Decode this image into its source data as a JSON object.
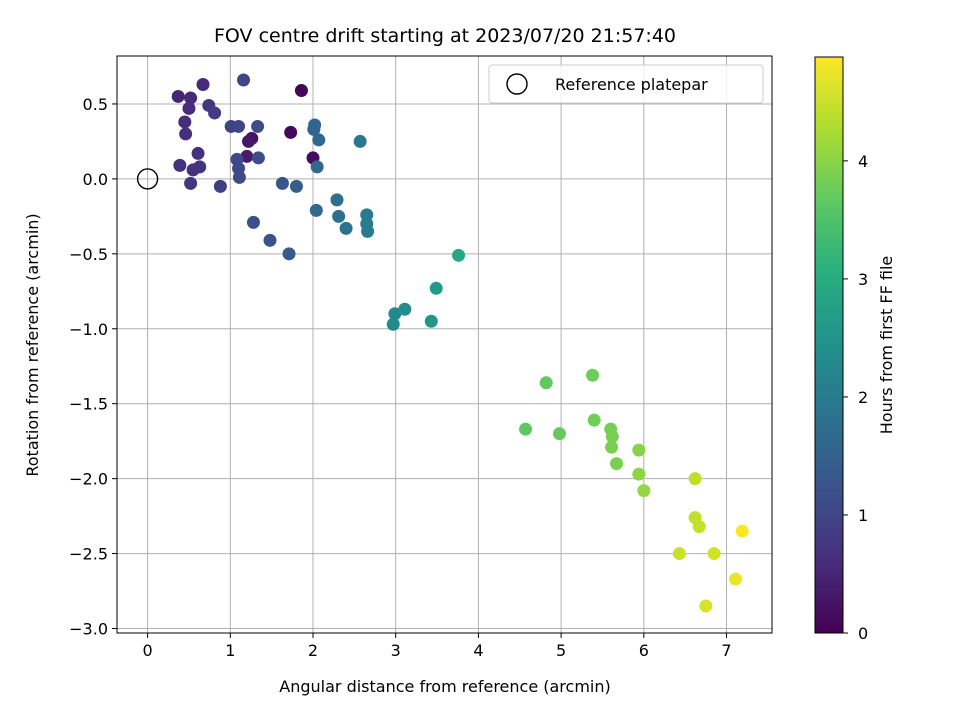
{
  "chart_data": {
    "type": "scatter",
    "title": "FOV centre drift starting at 2023/07/20 21:57:40",
    "xlabel": "Angular distance from reference (arcmin)",
    "ylabel": "Rotation from reference (arcmin)",
    "colorbar_label": "Hours from first FF file",
    "xlim": [
      -0.37,
      7.55
    ],
    "ylim": [
      -3.03,
      0.82
    ],
    "x_ticks": [
      0,
      1,
      2,
      3,
      4,
      5,
      6,
      7
    ],
    "y_ticks": [
      0.5,
      0.0,
      -0.5,
      -1.0,
      -1.5,
      -2.0,
      -2.5,
      -3.0
    ],
    "x_tick_labels": [
      "0",
      "1",
      "2",
      "3",
      "4",
      "5",
      "6",
      "7"
    ],
    "y_tick_labels": [
      "0.5",
      "0.0",
      "−0.5",
      "−1.0",
      "−1.5",
      "−2.0",
      "−2.5",
      "−3.0"
    ],
    "colorbar_range": [
      0,
      4.88
    ],
    "colorbar_ticks": [
      0,
      1,
      2,
      3,
      4
    ],
    "colorbar_tick_labels": [
      "0",
      "1",
      "2",
      "3",
      "4"
    ],
    "colormap": "viridis",
    "grid": true,
    "legend": {
      "position": "top-right",
      "entries": [
        "Reference platepar"
      ]
    },
    "reference_point": {
      "label": "Reference platepar",
      "x": 0.0,
      "y": 0.0
    },
    "points": [
      {
        "x": 1.86,
        "y": 0.59,
        "c": 0.05
      },
      {
        "x": 1.73,
        "y": 0.31,
        "c": 0.1
      },
      {
        "x": 2.0,
        "y": 0.14,
        "c": 0.15
      },
      {
        "x": 1.26,
        "y": 0.27,
        "c": 0.25
      },
      {
        "x": 1.22,
        "y": 0.25,
        "c": 0.3
      },
      {
        "x": 1.2,
        "y": 0.15,
        "c": 0.35
      },
      {
        "x": 0.37,
        "y": 0.55,
        "c": 0.5
      },
      {
        "x": 0.52,
        "y": 0.54,
        "c": 0.55
      },
      {
        "x": 0.67,
        "y": 0.63,
        "c": 0.58
      },
      {
        "x": 0.5,
        "y": 0.47,
        "c": 0.6
      },
      {
        "x": 0.45,
        "y": 0.38,
        "c": 0.62
      },
      {
        "x": 0.46,
        "y": 0.3,
        "c": 0.65
      },
      {
        "x": 0.61,
        "y": 0.17,
        "c": 0.68
      },
      {
        "x": 0.39,
        "y": 0.09,
        "c": 0.7
      },
      {
        "x": 0.55,
        "y": 0.06,
        "c": 0.72
      },
      {
        "x": 0.63,
        "y": 0.08,
        "c": 0.74
      },
      {
        "x": 0.52,
        "y": -0.03,
        "c": 0.76
      },
      {
        "x": 0.74,
        "y": 0.49,
        "c": 0.8
      },
      {
        "x": 0.81,
        "y": 0.44,
        "c": 0.85
      },
      {
        "x": 0.88,
        "y": -0.05,
        "c": 0.9
      },
      {
        "x": 1.01,
        "y": 0.35,
        "c": 0.95
      },
      {
        "x": 1.16,
        "y": 0.66,
        "c": 1.0
      },
      {
        "x": 1.1,
        "y": 0.35,
        "c": 1.02
      },
      {
        "x": 1.08,
        "y": 0.13,
        "c": 1.05
      },
      {
        "x": 1.1,
        "y": 0.07,
        "c": 1.07
      },
      {
        "x": 1.11,
        "y": 0.01,
        "c": 1.1
      },
      {
        "x": 1.33,
        "y": 0.35,
        "c": 1.12
      },
      {
        "x": 1.34,
        "y": 0.14,
        "c": 1.15
      },
      {
        "x": 1.28,
        "y": -0.29,
        "c": 1.2
      },
      {
        "x": 1.48,
        "y": -0.41,
        "c": 1.25
      },
      {
        "x": 1.63,
        "y": -0.03,
        "c": 1.3
      },
      {
        "x": 1.71,
        "y": -0.5,
        "c": 1.35
      },
      {
        "x": 1.8,
        "y": -0.05,
        "c": 1.45
      },
      {
        "x": 2.02,
        "y": 0.36,
        "c": 1.55
      },
      {
        "x": 2.01,
        "y": 0.33,
        "c": 1.58
      },
      {
        "x": 2.07,
        "y": 0.26,
        "c": 1.6
      },
      {
        "x": 2.05,
        "y": 0.08,
        "c": 1.62
      },
      {
        "x": 2.04,
        "y": -0.21,
        "c": 1.65
      },
      {
        "x": 2.29,
        "y": -0.14,
        "c": 1.75
      },
      {
        "x": 2.31,
        "y": -0.25,
        "c": 1.8
      },
      {
        "x": 2.4,
        "y": -0.33,
        "c": 1.85
      },
      {
        "x": 2.57,
        "y": 0.25,
        "c": 1.95
      },
      {
        "x": 2.65,
        "y": -0.24,
        "c": 2.0
      },
      {
        "x": 2.65,
        "y": -0.3,
        "c": 2.03
      },
      {
        "x": 2.66,
        "y": -0.35,
        "c": 2.05
      },
      {
        "x": 2.99,
        "y": -0.9,
        "c": 2.3
      },
      {
        "x": 2.97,
        "y": -0.97,
        "c": 2.32
      },
      {
        "x": 3.11,
        "y": -0.87,
        "c": 2.4
      },
      {
        "x": 3.43,
        "y": -0.95,
        "c": 2.55
      },
      {
        "x": 3.49,
        "y": -0.73,
        "c": 2.7
      },
      {
        "x": 3.76,
        "y": -0.51,
        "c": 2.9
      },
      {
        "x": 4.57,
        "y": -1.67,
        "c": 3.65
      },
      {
        "x": 4.82,
        "y": -1.36,
        "c": 3.7
      },
      {
        "x": 4.98,
        "y": -1.7,
        "c": 3.72
      },
      {
        "x": 5.38,
        "y": -1.31,
        "c": 3.8
      },
      {
        "x": 5.4,
        "y": -1.61,
        "c": 3.82
      },
      {
        "x": 5.6,
        "y": -1.67,
        "c": 3.85
      },
      {
        "x": 5.62,
        "y": -1.72,
        "c": 3.87
      },
      {
        "x": 5.61,
        "y": -1.79,
        "c": 3.88
      },
      {
        "x": 5.67,
        "y": -1.9,
        "c": 3.9
      },
      {
        "x": 5.94,
        "y": -1.81,
        "c": 4.0
      },
      {
        "x": 5.94,
        "y": -1.97,
        "c": 4.05
      },
      {
        "x": 6.0,
        "y": -2.08,
        "c": 4.1
      },
      {
        "x": 6.62,
        "y": -2.0,
        "c": 4.4
      },
      {
        "x": 6.62,
        "y": -2.26,
        "c": 4.42
      },
      {
        "x": 6.67,
        "y": -2.32,
        "c": 4.45
      },
      {
        "x": 6.43,
        "y": -2.5,
        "c": 4.5
      },
      {
        "x": 6.85,
        "y": -2.5,
        "c": 4.55
      },
      {
        "x": 6.75,
        "y": -2.85,
        "c": 4.6
      },
      {
        "x": 7.11,
        "y": -2.67,
        "c": 4.75
      },
      {
        "x": 7.19,
        "y": -2.35,
        "c": 4.85
      }
    ]
  }
}
